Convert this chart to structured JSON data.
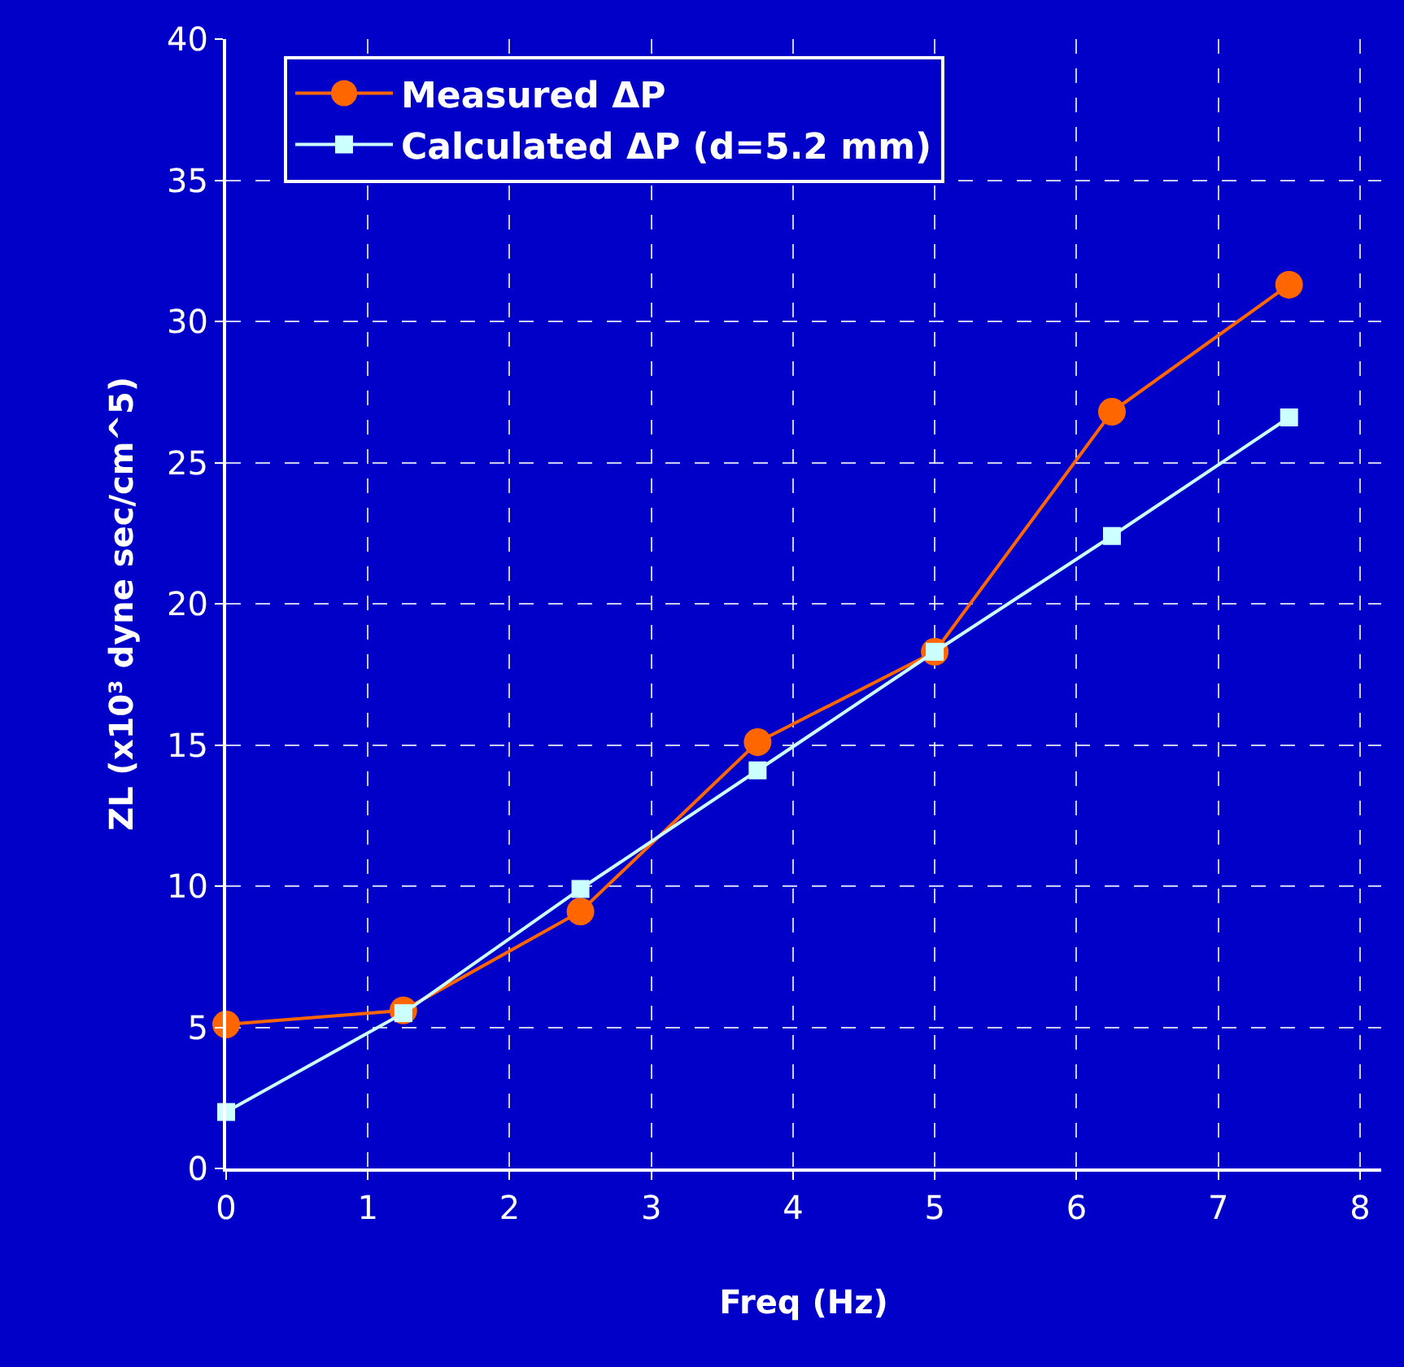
{
  "chart_data": {
    "type": "line",
    "xlabel": "Freq (Hz)",
    "ylabel": "ZL (x10³ dyne sec/cm^5)",
    "x": [
      0,
      1.25,
      2.5,
      3.75,
      5,
      6.25,
      7.5
    ],
    "series": [
      {
        "name": "Measured ΔP",
        "color": "#ff6600",
        "marker": "circle",
        "values": [
          5.1,
          5.6,
          9.1,
          15.1,
          18.3,
          26.8,
          31.3
        ]
      },
      {
        "name": "Calculated ΔP (d=5.2 mm)",
        "color": "#ccffff",
        "marker": "square",
        "values": [
          2.0,
          5.5,
          9.9,
          14.1,
          18.3,
          22.4,
          26.6
        ]
      }
    ],
    "xlim": [
      0,
      8.15
    ],
    "xticks": [
      0,
      1,
      2,
      3,
      4,
      5,
      6,
      7,
      8
    ],
    "ylim": [
      0,
      40
    ],
    "yticks": [
      0,
      5,
      10,
      15,
      20,
      25,
      30,
      35,
      40
    ],
    "grid": true,
    "legend": "top left",
    "line_style": "solid"
  }
}
